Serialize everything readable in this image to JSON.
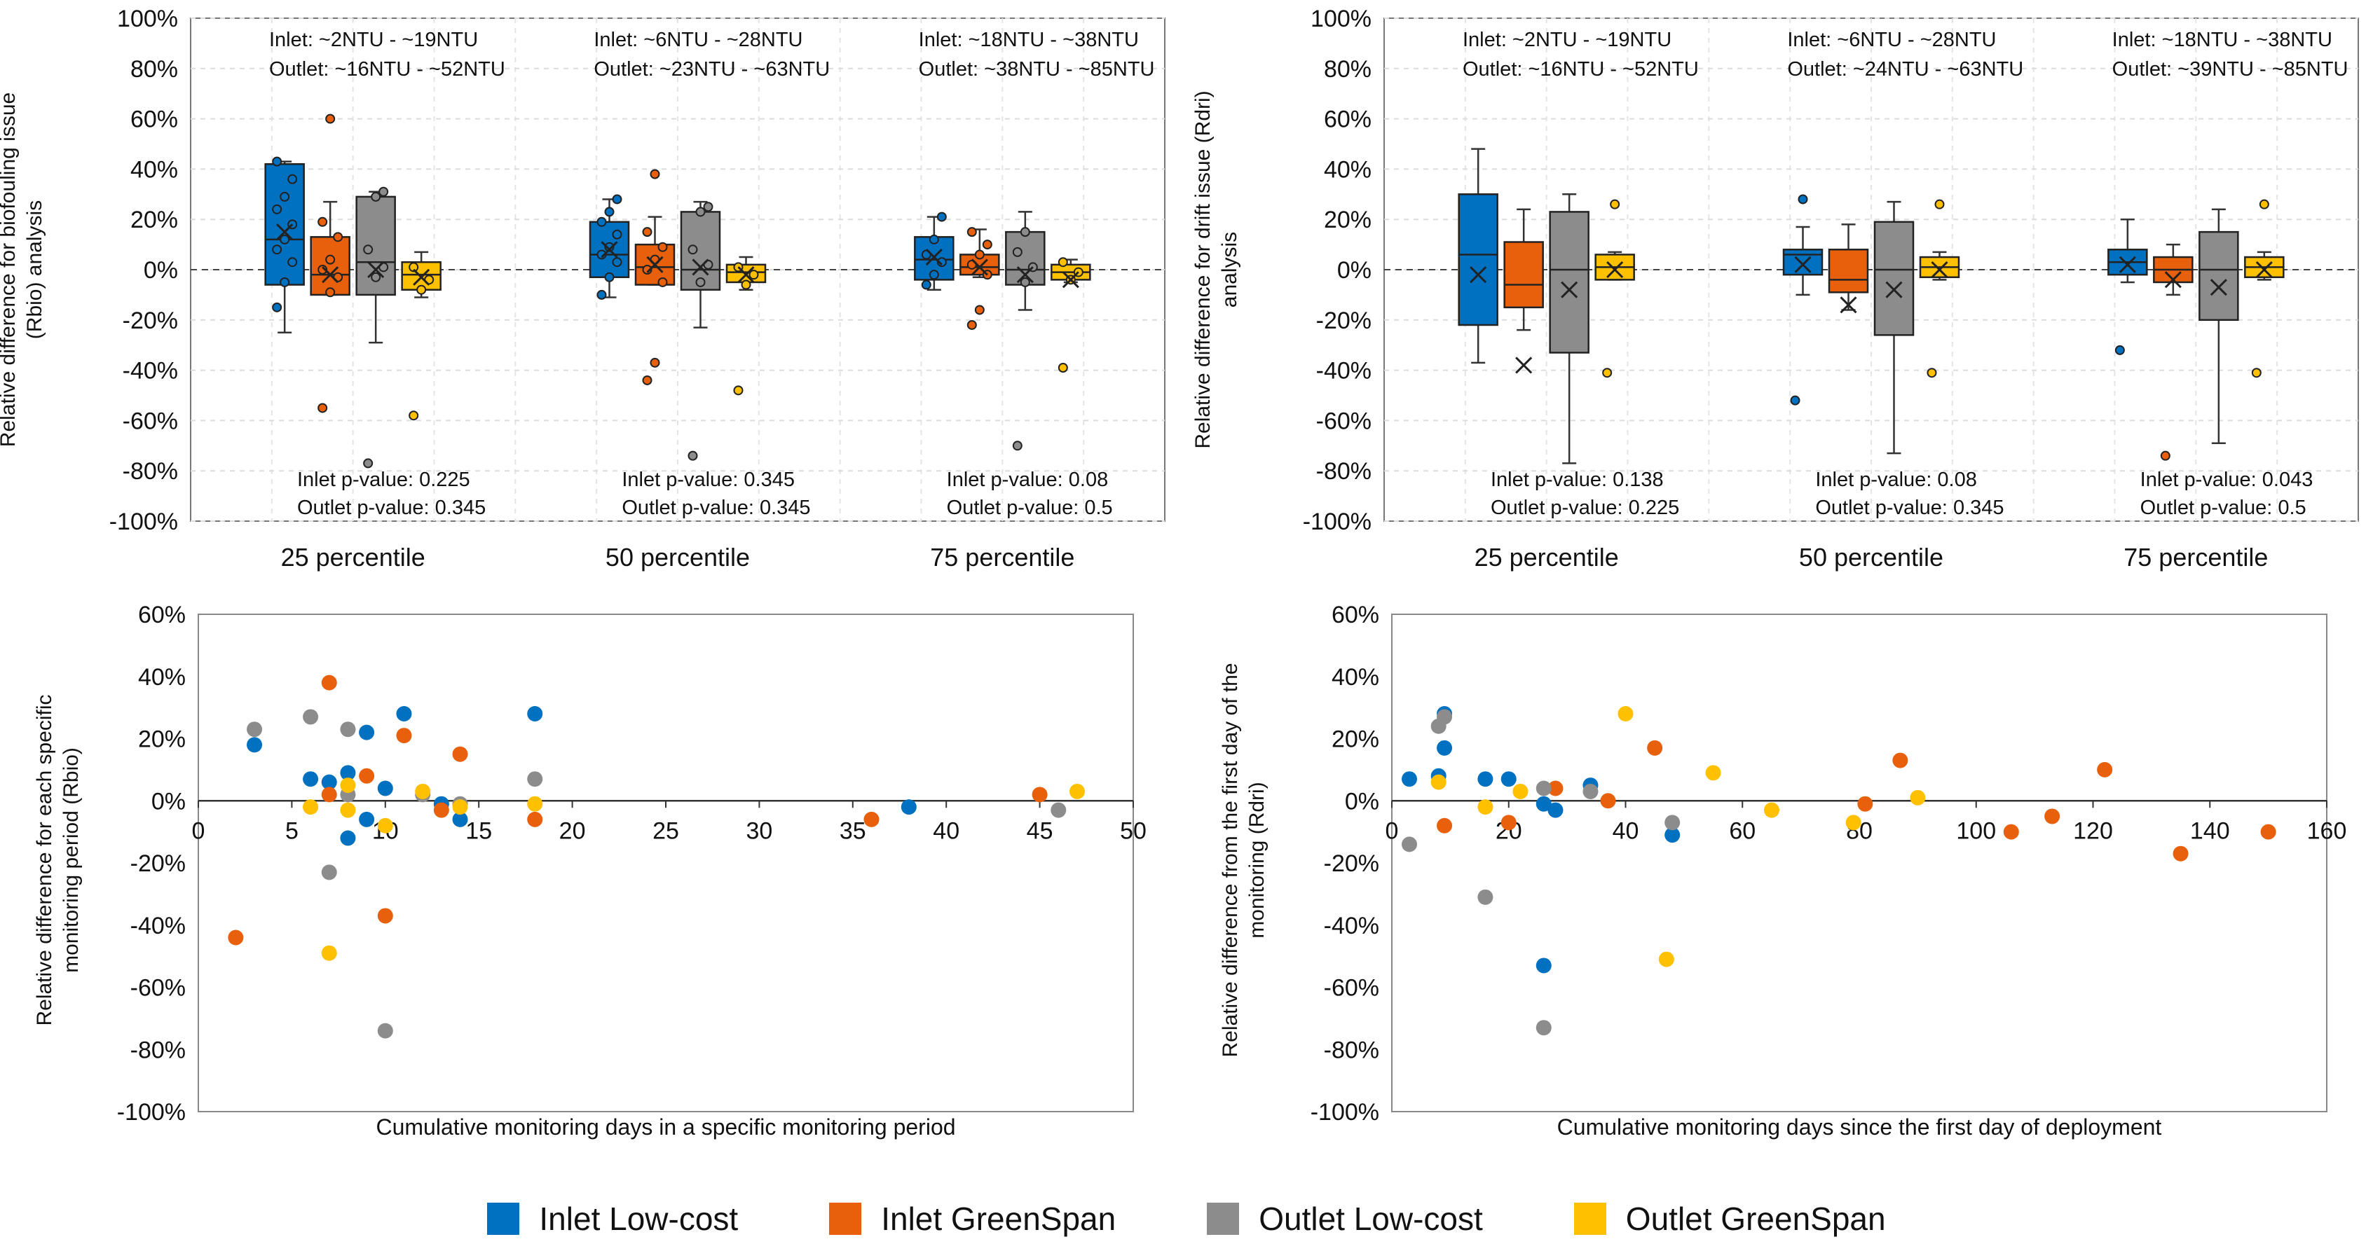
{
  "colors": {
    "inlet_lowcost": "#0070C0",
    "inlet_greenspan": "#E8600C",
    "outlet_lowcost": "#8C8C8C",
    "outlet_greenspan": "#FFC000"
  },
  "legend": [
    {
      "label": "Inlet Low-cost",
      "color_key": "inlet_lowcost"
    },
    {
      "label": "Inlet GreenSpan",
      "color_key": "inlet_greenspan"
    },
    {
      "label": "Outlet Low-cost",
      "color_key": "outlet_lowcost"
    },
    {
      "label": "Outlet GreenSpan",
      "color_key": "outlet_greenspan"
    }
  ],
  "chart_data": [
    {
      "id": "box-biofouling",
      "type": "box",
      "ylabel": [
        "Relative difference for biofouling issue",
        "(Rbio)  analysis"
      ],
      "ylim": [
        -100,
        100
      ],
      "yticks": [
        100,
        80,
        60,
        40,
        20,
        0,
        -20,
        -40,
        -60,
        -80,
        -100
      ],
      "ytick_labels": [
        "100%",
        "80%",
        "60%",
        "40%",
        "20%",
        "0%",
        "-20%",
        "-40%",
        "-60%",
        "-80%",
        "-100%"
      ],
      "categories": [
        "25 percentile",
        "50 percentile",
        "75 percentile"
      ],
      "range_text": [
        [
          "Inlet: ~2NTU - ~19NTU",
          "Outlet: ~16NTU - ~52NTU"
        ],
        [
          "Inlet: ~6NTU - ~28NTU",
          "Outlet: ~23NTU - ~63NTU"
        ],
        [
          "Inlet: ~18NTU - ~38NTU",
          "Outlet: ~38NTU - ~85NTU"
        ]
      ],
      "pvalue_text": [
        [
          "Inlet p-value: 0.225",
          "Outlet p-value: 0.345"
        ],
        [
          "Inlet p-value: 0.345",
          "Outlet p-value: 0.345"
        ],
        [
          "Inlet p-value: 0.08",
          "Outlet p-value: 0.5"
        ]
      ],
      "boxes": [
        [
          {
            "series": "inlet_lowcost",
            "min": -25,
            "q1": -6,
            "median": 12,
            "q3": 42,
            "max": 43,
            "mean": 15,
            "points": [
              -15,
              -5,
              3,
              8,
              12,
              18,
              24,
              29,
              36,
              43
            ]
          },
          {
            "series": "inlet_greenspan",
            "min": -10,
            "q1": -10,
            "median": -2,
            "q3": 13,
            "max": 27,
            "mean": -2,
            "points": [
              -55,
              -9,
              -3,
              0,
              4,
              13,
              19,
              60
            ]
          },
          {
            "series": "outlet_lowcost",
            "min": -29,
            "q1": -10,
            "median": 3,
            "q3": 29,
            "max": 31,
            "mean": 0,
            "points": [
              -77,
              -3,
              1,
              8,
              29,
              31
            ]
          },
          {
            "series": "outlet_greenspan",
            "min": -11,
            "q1": -8,
            "median": -2,
            "q3": 3,
            "max": 7,
            "mean": -3,
            "points": [
              -58,
              -8,
              -4,
              1
            ]
          }
        ],
        [
          {
            "series": "inlet_lowcost",
            "min": -11,
            "q1": -3,
            "median": 6,
            "q3": 19,
            "max": 28,
            "mean": 8,
            "points": [
              -10,
              -3,
              3,
              6,
              9,
              14,
              19,
              23,
              28
            ]
          },
          {
            "series": "inlet_greenspan",
            "min": -6,
            "q1": -6,
            "median": 1,
            "q3": 10,
            "max": 21,
            "mean": 2,
            "points": [
              -44,
              -37,
              -5,
              0,
              4,
              9,
              15,
              38
            ]
          },
          {
            "series": "outlet_lowcost",
            "min": -23,
            "q1": -8,
            "median": 0,
            "q3": 23,
            "max": 27,
            "mean": 1,
            "points": [
              -74,
              -5,
              2,
              8,
              23,
              25
            ]
          },
          {
            "series": "outlet_greenspan",
            "min": -8,
            "q1": -5,
            "median": -1,
            "q3": 2,
            "max": 5,
            "mean": -2,
            "points": [
              -48,
              -6,
              -2,
              1
            ]
          }
        ],
        [
          {
            "series": "inlet_lowcost",
            "min": -8,
            "q1": -4,
            "median": 4,
            "q3": 13,
            "max": 21,
            "mean": 5,
            "points": [
              -6,
              -2,
              3,
              6,
              12,
              21
            ]
          },
          {
            "series": "inlet_greenspan",
            "min": -3,
            "q1": -2,
            "median": 1,
            "q3": 6,
            "max": 16,
            "mean": 1,
            "points": [
              -22,
              -16,
              -2,
              2,
              6,
              10,
              15
            ]
          },
          {
            "series": "outlet_lowcost",
            "min": -16,
            "q1": -6,
            "median": 0,
            "q3": 15,
            "max": 23,
            "mean": -2,
            "points": [
              -70,
              -5,
              1,
              7,
              15
            ]
          },
          {
            "series": "outlet_greenspan",
            "min": -5,
            "q1": -4,
            "median": -1,
            "q3": 2,
            "max": 4,
            "mean": -4,
            "points": [
              -39,
              -4,
              -1,
              3
            ]
          }
        ]
      ]
    },
    {
      "id": "box-drift",
      "type": "box",
      "ylabel": [
        "Relative difference for drift issue (Rdri)",
        "analysis"
      ],
      "ylim": [
        -100,
        100
      ],
      "yticks": [
        100,
        80,
        60,
        40,
        20,
        0,
        -20,
        -40,
        -60,
        -80,
        -100
      ],
      "ytick_labels": [
        "100%",
        "80%",
        "60%",
        "40%",
        "20%",
        "0%",
        "-20%",
        "-40%",
        "-60%",
        "-80%",
        "-100%"
      ],
      "categories": [
        "25 percentile",
        "50 percentile",
        "75 percentile"
      ],
      "range_text": [
        [
          "Inlet: ~2NTU - ~19NTU",
          "Outlet: ~16NTU - ~52NTU"
        ],
        [
          "Inlet: ~6NTU - ~28NTU",
          "Outlet: ~24NTU - ~63NTU"
        ],
        [
          "Inlet: ~18NTU - ~38NTU",
          "Outlet: ~39NTU - ~85NTU"
        ]
      ],
      "pvalue_text": [
        [
          "Inlet p-value: 0.138",
          "Outlet p-value: 0.225"
        ],
        [
          "Inlet p-value: 0.08",
          "Outlet p-value: 0.345"
        ],
        [
          "Inlet p-value: 0.043",
          "Outlet p-value: 0.5"
        ]
      ],
      "boxes": [
        [
          {
            "series": "inlet_lowcost",
            "min": -37,
            "q1": -22,
            "median": 6,
            "q3": 30,
            "max": 48,
            "mean": -2,
            "points": []
          },
          {
            "series": "inlet_greenspan",
            "min": -24,
            "q1": -15,
            "median": -6,
            "q3": 11,
            "max": 24,
            "mean": -38,
            "points": []
          },
          {
            "series": "outlet_lowcost",
            "min": -77,
            "q1": -33,
            "median": 0,
            "q3": 23,
            "max": 30,
            "mean": -8,
            "points": []
          },
          {
            "series": "outlet_greenspan",
            "min": -4,
            "q1": -4,
            "median": 1,
            "q3": 6,
            "max": 7,
            "mean": 0,
            "points": [
              -41,
              26
            ]
          }
        ],
        [
          {
            "series": "inlet_lowcost",
            "min": -10,
            "q1": -2,
            "median": 6,
            "q3": 8,
            "max": 17,
            "mean": 2,
            "points": [
              -52,
              28
            ]
          },
          {
            "series": "inlet_greenspan",
            "min": -16,
            "q1": -9,
            "median": -4,
            "q3": 8,
            "max": 18,
            "mean": -14,
            "points": []
          },
          {
            "series": "outlet_lowcost",
            "min": -73,
            "q1": -26,
            "median": 0,
            "q3": 19,
            "max": 27,
            "mean": -8,
            "points": []
          },
          {
            "series": "outlet_greenspan",
            "min": -4,
            "q1": -3,
            "median": 1,
            "q3": 5,
            "max": 7,
            "mean": 0,
            "points": [
              -41,
              26
            ]
          }
        ],
        [
          {
            "series": "inlet_lowcost",
            "min": -5,
            "q1": -2,
            "median": 3,
            "q3": 8,
            "max": 20,
            "mean": 2,
            "points": [
              -32
            ]
          },
          {
            "series": "inlet_greenspan",
            "min": -10,
            "q1": -5,
            "median": 0,
            "q3": 5,
            "max": 10,
            "mean": -4,
            "points": [
              -74
            ]
          },
          {
            "series": "outlet_lowcost",
            "min": -69,
            "q1": -20,
            "median": 0,
            "q3": 15,
            "max": 24,
            "mean": -7,
            "points": []
          },
          {
            "series": "outlet_greenspan",
            "min": -4,
            "q1": -3,
            "median": 1,
            "q3": 5,
            "max": 7,
            "mean": 0,
            "points": [
              -41,
              26
            ]
          }
        ]
      ]
    },
    {
      "id": "scatter-specific",
      "type": "scatter",
      "xlabel": "Cumulative monitoring days in a specific monitoring period",
      "ylabel": [
        "Relative difference for each specific",
        "monitoring period (Rbio)"
      ],
      "xlim": [
        0,
        50
      ],
      "xticks": [
        0,
        5,
        10,
        15,
        20,
        25,
        30,
        35,
        40,
        45,
        50
      ],
      "ylim": [
        -100,
        60
      ],
      "yticks": [
        60,
        40,
        20,
        0,
        -20,
        -40,
        -60,
        -80,
        -100
      ],
      "ytick_labels": [
        "60%",
        "40%",
        "20%",
        "0%",
        "-20%",
        "-40%",
        "-60%",
        "-80%",
        "-100%"
      ],
      "series": [
        {
          "name": "Inlet Low-cost",
          "color_key": "inlet_lowcost",
          "points": [
            [
              3,
              18
            ],
            [
              6,
              7
            ],
            [
              7,
              6
            ],
            [
              8,
              9
            ],
            [
              8,
              -12
            ],
            [
              9,
              22
            ],
            [
              9,
              -6
            ],
            [
              10,
              4
            ],
            [
              11,
              28
            ],
            [
              13,
              -1
            ],
            [
              14,
              -6
            ],
            [
              18,
              28
            ],
            [
              38,
              -2
            ]
          ]
        },
        {
          "name": "Inlet GreenSpan",
          "color_key": "inlet_greenspan",
          "points": [
            [
              2,
              -44
            ],
            [
              7,
              38
            ],
            [
              7,
              2
            ],
            [
              9,
              8
            ],
            [
              10,
              -37
            ],
            [
              11,
              21
            ],
            [
              13,
              -3
            ],
            [
              14,
              15
            ],
            [
              18,
              -6
            ],
            [
              36,
              -6
            ],
            [
              45,
              2
            ]
          ]
        },
        {
          "name": "Outlet Low-cost",
          "color_key": "outlet_lowcost",
          "points": [
            [
              3,
              23
            ],
            [
              6,
              27
            ],
            [
              7,
              -23
            ],
            [
              8,
              23
            ],
            [
              8,
              2
            ],
            [
              10,
              -74
            ],
            [
              12,
              2
            ],
            [
              14,
              -1
            ],
            [
              18,
              7
            ],
            [
              46,
              -3
            ]
          ]
        },
        {
          "name": "Outlet GreenSpan",
          "color_key": "outlet_greenspan",
          "points": [
            [
              6,
              -2
            ],
            [
              7,
              -49
            ],
            [
              8,
              5
            ],
            [
              8,
              -3
            ],
            [
              10,
              -8
            ],
            [
              12,
              3
            ],
            [
              14,
              -2
            ],
            [
              18,
              -1
            ],
            [
              47,
              3
            ]
          ]
        }
      ]
    },
    {
      "id": "scatter-deployment",
      "type": "scatter",
      "xlabel": "Cumulative monitoring days since the first day of deployment",
      "ylabel": [
        "Relative difference from the first day of the",
        "monitoring (Rdri)"
      ],
      "xlim": [
        0,
        160
      ],
      "xticks": [
        0,
        20,
        40,
        60,
        80,
        100,
        120,
        140,
        160
      ],
      "ylim": [
        -100,
        60
      ],
      "yticks": [
        60,
        40,
        20,
        0,
        -20,
        -40,
        -60,
        -80,
        -100
      ],
      "ytick_labels": [
        "60%",
        "40%",
        "20%",
        "0%",
        "-20%",
        "-40%",
        "-60%",
        "-80%",
        "-100%"
      ],
      "series": [
        {
          "name": "Inlet Low-cost",
          "color_key": "inlet_lowcost",
          "points": [
            [
              3,
              7
            ],
            [
              8,
              8
            ],
            [
              9,
              28
            ],
            [
              9,
              17
            ],
            [
              16,
              7
            ],
            [
              20,
              7
            ],
            [
              26,
              -53
            ],
            [
              26,
              -1
            ],
            [
              28,
              -3
            ],
            [
              34,
              5
            ],
            [
              48,
              -11
            ]
          ]
        },
        {
          "name": "Inlet GreenSpan",
          "color_key": "inlet_greenspan",
          "points": [
            [
              9,
              -8
            ],
            [
              20,
              -7
            ],
            [
              28,
              4
            ],
            [
              37,
              0
            ],
            [
              45,
              17
            ],
            [
              81,
              -1
            ],
            [
              87,
              13
            ],
            [
              106,
              -10
            ],
            [
              113,
              -5
            ],
            [
              122,
              10
            ],
            [
              135,
              -17
            ],
            [
              150,
              -10
            ]
          ]
        },
        {
          "name": "Outlet Low-cost",
          "color_key": "outlet_lowcost",
          "points": [
            [
              3,
              -14
            ],
            [
              8,
              24
            ],
            [
              9,
              27
            ],
            [
              16,
              -31
            ],
            [
              26,
              4
            ],
            [
              26,
              -73
            ],
            [
              34,
              3
            ],
            [
              48,
              -7
            ]
          ]
        },
        {
          "name": "Outlet GreenSpan",
          "color_key": "outlet_greenspan",
          "points": [
            [
              8,
              6
            ],
            [
              16,
              -2
            ],
            [
              22,
              3
            ],
            [
              40,
              28
            ],
            [
              47,
              -51
            ],
            [
              55,
              9
            ],
            [
              65,
              -3
            ],
            [
              79,
              -7
            ],
            [
              90,
              1
            ]
          ]
        }
      ]
    }
  ]
}
